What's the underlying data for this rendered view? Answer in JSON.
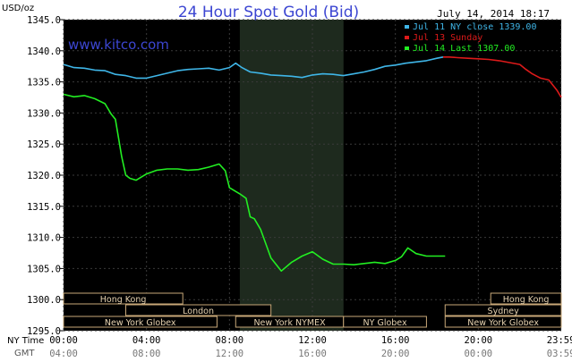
{
  "chart_data": {
    "type": "line",
    "title": "24 Hour Spot Gold (Bid)",
    "ylabel": "USD/oz",
    "timestamp": "July 14, 2014 18:17",
    "watermark": "www.kitco.com",
    "ylim": [
      1295,
      1345
    ],
    "y_ticks": [
      "1295.0",
      "1300.0",
      "1305.0",
      "1310.0",
      "1315.0",
      "1320.0",
      "1325.0",
      "1330.0",
      "1335.0",
      "1340.0",
      "1345.0"
    ],
    "x_ticks": [
      "00:00",
      "04:00",
      "08:00",
      "12:00",
      "16:00",
      "20:00",
      "23:59"
    ],
    "gmt_ticks": [
      "04:00",
      "08:00",
      "12:00",
      "16:00",
      "20:00",
      "00:00",
      "03:59"
    ],
    "row_label_ny": "NY Time",
    "row_label_gmt": "GMT",
    "shaded_hours": [
      8.5,
      13.5
    ],
    "legend": [
      {
        "label": "Jul 11 NY close 1339.00",
        "color": "#3fb6e8"
      },
      {
        "label": "Jul 13 Sunday",
        "color": "#dd1a1a"
      },
      {
        "label": "Jul 14 Last 1307.00",
        "color": "#22ee22"
      }
    ],
    "series": [
      {
        "name": "Jul 11 NY close 1339.00",
        "color": "#3fb6e8",
        "x": [
          0,
          0.5,
          1,
          1.5,
          2,
          2.5,
          3,
          3.5,
          4,
          4.5,
          5,
          5.5,
          6,
          6.5,
          7,
          7.5,
          8,
          8.3,
          8.6,
          9,
          9.5,
          10,
          10.5,
          11,
          11.5,
          12,
          12.5,
          13,
          13.5,
          14,
          14.5,
          15,
          15.5,
          16,
          16.5,
          17,
          17.5,
          18,
          18.3
        ],
        "y": [
          1337.8,
          1337.3,
          1337.2,
          1336.9,
          1336.8,
          1336.2,
          1336.0,
          1335.6,
          1335.6,
          1336.0,
          1336.4,
          1336.8,
          1337.0,
          1337.1,
          1337.2,
          1336.9,
          1337.3,
          1338.0,
          1337.3,
          1336.6,
          1336.4,
          1336.1,
          1336.0,
          1335.9,
          1335.7,
          1336.1,
          1336.3,
          1336.2,
          1336.0,
          1336.3,
          1336.6,
          1337.0,
          1337.5,
          1337.7,
          1338.0,
          1338.2,
          1338.4,
          1338.8,
          1339.0
        ]
      },
      {
        "name": "Jul 13 Sunday",
        "color": "#dd1a1a",
        "x": [
          18.3,
          18.6,
          19,
          19.5,
          20,
          20.5,
          21,
          21.5,
          22,
          22.3,
          22.6,
          23,
          23.4,
          23.8,
          24
        ],
        "y": [
          1339.0,
          1339.0,
          1338.9,
          1338.8,
          1338.7,
          1338.6,
          1338.4,
          1338.1,
          1337.8,
          1337.0,
          1336.3,
          1335.6,
          1335.3,
          1333.6,
          1332.5
        ]
      },
      {
        "name": "Jul 14 Last 1307.00",
        "color": "#22ee22",
        "x": [
          0,
          0.5,
          1,
          1.5,
          2,
          2.3,
          2.5,
          2.8,
          3,
          3.2,
          3.5,
          4,
          4.5,
          5,
          5.5,
          6,
          6.5,
          7,
          7.5,
          7.8,
          8,
          8.5,
          8.8,
          9,
          9.2,
          9.5,
          10,
          10.5,
          11,
          11.5,
          12,
          12.5,
          13,
          13.5,
          14,
          14.5,
          15,
          15.5,
          16,
          16.3,
          16.6,
          17,
          17.5,
          18,
          18.4
        ],
        "y": [
          1333.0,
          1332.6,
          1332.8,
          1332.3,
          1331.5,
          1329.8,
          1329.0,
          1323.0,
          1320.0,
          1319.5,
          1319.2,
          1320.2,
          1320.8,
          1321.0,
          1321.0,
          1320.8,
          1320.9,
          1321.3,
          1321.8,
          1320.7,
          1318.0,
          1317.0,
          1316.3,
          1313.3,
          1313.0,
          1311.3,
          1306.7,
          1304.6,
          1306.0,
          1307.0,
          1307.7,
          1306.5,
          1305.7,
          1305.7,
          1305.6,
          1305.8,
          1306.0,
          1305.8,
          1306.3,
          1306.9,
          1308.3,
          1307.4,
          1307.0,
          1307.0,
          1307.0
        ]
      }
    ],
    "sessions_top": [
      {
        "label": "Hong Kong",
        "start": 0,
        "end": 5.75
      },
      {
        "label": "Hong Kong",
        "start": 20.6,
        "end": 24
      }
    ],
    "sessions_mid": [
      {
        "label": "London",
        "start": 3,
        "end": 10
      },
      {
        "label": "Sydney",
        "start": 18.4,
        "end": 24
      }
    ],
    "sessions_bot": [
      {
        "label": "New York Globex",
        "start": 0,
        "end": 7.4
      },
      {
        "label": "New York NYMEX",
        "start": 8.3,
        "end": 13.5
      },
      {
        "label": "NY Globex",
        "start": 13.5,
        "end": 17.5
      },
      {
        "label": "New York Globex",
        "start": 18.4,
        "end": 24
      }
    ]
  }
}
